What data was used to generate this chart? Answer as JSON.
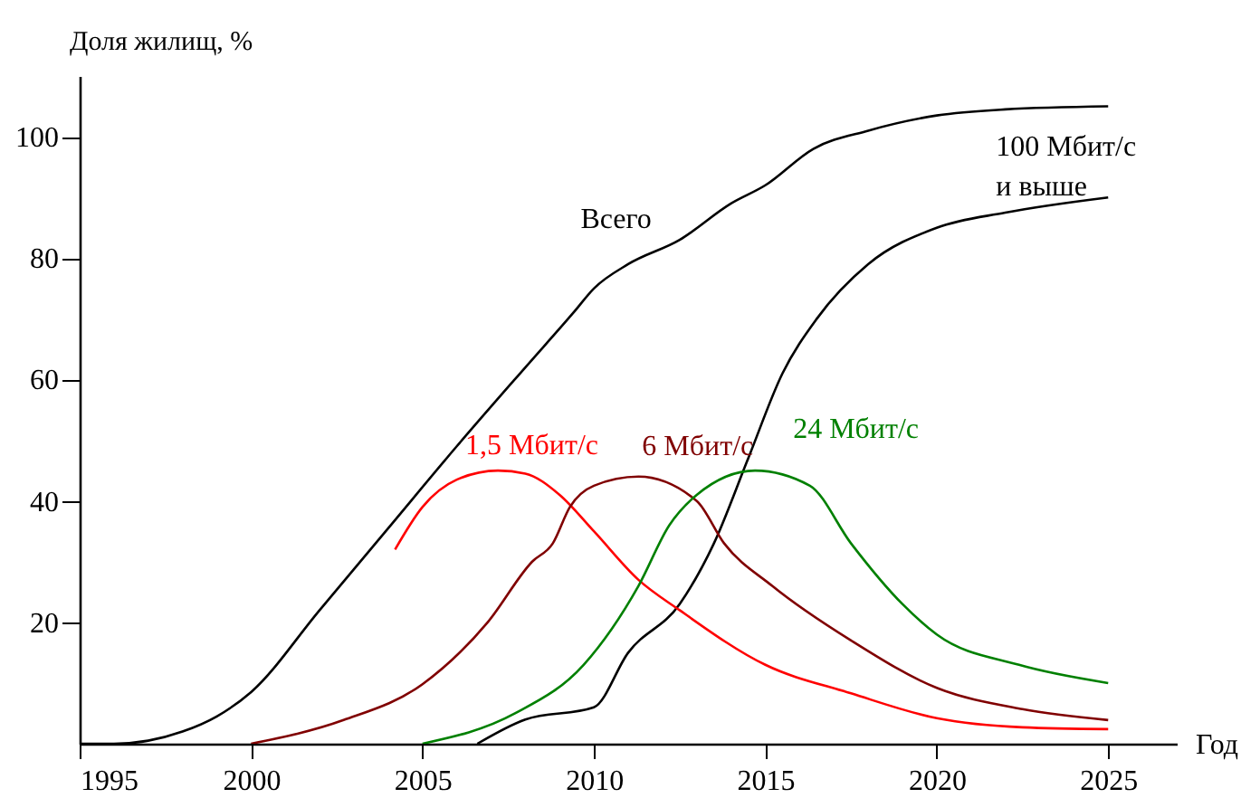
{
  "chart_data": {
    "type": "line",
    "xlabel": "Год",
    "ylabel": "Доля жилищ, %",
    "xlim": [
      1995,
      2027
    ],
    "ylim": [
      0,
      110
    ],
    "xticks": [
      1995,
      2000,
      2005,
      2010,
      2015,
      2020,
      2025
    ],
    "yticks": [
      20,
      40,
      60,
      80,
      100
    ],
    "series": [
      {
        "name": "Всего",
        "color": "#000000",
        "x": [
          1995,
          1996,
          1997,
          1998,
          1999,
          2000,
          2002,
          2004,
          2006,
          2008,
          2009.4,
          2010,
          2011,
          2012.5,
          2014,
          2015,
          2016.4,
          2018,
          2020,
          2022,
          2025
        ],
        "values": [
          0,
          0,
          0.5,
          2,
          4.5,
          8.5,
          22,
          35.5,
          49,
          62,
          71,
          75,
          79,
          83,
          89,
          92,
          98,
          101,
          103.5,
          104.5,
          105
        ]
      },
      {
        "name": "100 Мбит/с\nи выше",
        "color": "#000000",
        "x": [
          2006.6,
          2008,
          2010,
          2011,
          2012.5,
          2013.5,
          2014.5,
          2015.5,
          2016.5,
          2018,
          2020,
          2022,
          2025
        ],
        "values": [
          0,
          4,
          6,
          15,
          23,
          33,
          47,
          61,
          70,
          79,
          85,
          87.5,
          90
        ]
      },
      {
        "name": "1,5 Мбит/с",
        "color": "#ff0000",
        "x": [
          2004.2,
          2005,
          2006,
          2007.2,
          2008,
          2009,
          2010,
          2011.3,
          2012.5,
          2015,
          2017.5,
          2020,
          2022.5,
          2025
        ],
        "values": [
          32,
          39,
          43.5,
          45,
          44.5,
          41,
          35,
          27,
          22,
          13,
          8.3,
          4.2,
          2.7,
          2.4
        ]
      },
      {
        "name": "6 Мбит/с",
        "color": "#800000",
        "x": [
          2000,
          2002.7,
          2005,
          2006.9,
          2008.2,
          2008.8,
          2009.3,
          2010,
          2011.3,
          2013,
          2013.8,
          2015.2,
          2017.5,
          2020,
          2022.5,
          2025
        ],
        "values": [
          0,
          3.9,
          9.8,
          20,
          30,
          33,
          39,
          42.5,
          44,
          40,
          33,
          26,
          17,
          9.2,
          5.7,
          3.9
        ]
      },
      {
        "name": "24 Мбит/с",
        "color": "#008000",
        "x": [
          2005,
          2007.7,
          2009.7,
          2011.3,
          2012.2,
          2013,
          2014.7,
          2016.3,
          2017.5,
          2019,
          2020,
          2022.4,
          2025
        ],
        "values": [
          0,
          5,
          13,
          26,
          36,
          41,
          45,
          42.5,
          33,
          23,
          18,
          13,
          10
        ]
      }
    ]
  }
}
